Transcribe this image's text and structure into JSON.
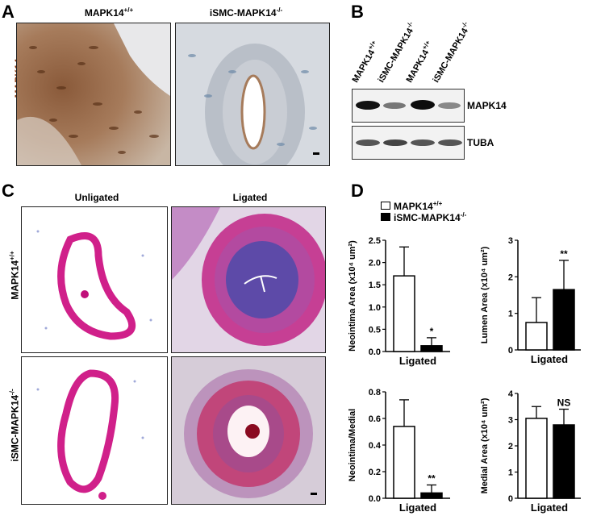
{
  "panels": {
    "A": {
      "letter": "A",
      "col1": "MAPK14+/+",
      "col2": "iSMC-MAPK14-/-",
      "row_label": "MAPK14"
    },
    "B": {
      "letter": "B",
      "lanes": [
        "MAPK14+/+",
        "iSMC-MAPK14-/-",
        "MAPK14+/+",
        "iSMC-MAPK14-/-"
      ],
      "bands": [
        "MAPK14",
        "TUBA"
      ]
    },
    "C": {
      "letter": "C",
      "col1": "Unligated",
      "col2": "Ligated",
      "row1": "MAPK14+/+",
      "row2": "iSMC-MAPK14-/-"
    },
    "D": {
      "letter": "D",
      "legend": [
        "MAPK14+/+",
        "iSMC-MAPK14-/-"
      ]
    }
  },
  "chart_data": [
    {
      "type": "bar",
      "categories": [
        "Ligated"
      ],
      "series": [
        {
          "name": "MAPK14+/+",
          "values": [
            1.7
          ],
          "error": [
            0.65
          ]
        },
        {
          "name": "iSMC-MAPK14-/-",
          "values": [
            0.13
          ],
          "error": [
            0.18
          ]
        }
      ],
      "ylabel": "Neointima Area (x10⁴ um²)",
      "xlabel": "Ligated",
      "ylim": [
        0,
        2.5
      ],
      "yticks": [
        "0.0",
        "0.5",
        "1.0",
        "1.5",
        "2.0",
        "2.5"
      ],
      "annotation": "*"
    },
    {
      "type": "bar",
      "categories": [
        "Ligated"
      ],
      "series": [
        {
          "name": "MAPK14+/+",
          "values": [
            0.75
          ],
          "error": [
            0.68
          ]
        },
        {
          "name": "iSMC-MAPK14-/-",
          "values": [
            1.65
          ],
          "error": [
            0.8
          ]
        }
      ],
      "ylabel": "Lumen Area (x10⁴ um²)",
      "xlabel": "Ligated",
      "ylim": [
        0,
        3
      ],
      "yticks": [
        "0",
        "1",
        "2",
        "3"
      ],
      "annotation": "**"
    },
    {
      "type": "bar",
      "categories": [
        "Ligated"
      ],
      "series": [
        {
          "name": "MAPK14+/+",
          "values": [
            0.54
          ],
          "error": [
            0.2
          ]
        },
        {
          "name": "iSMC-MAPK14-/-",
          "values": [
            0.04
          ],
          "error": [
            0.06
          ]
        }
      ],
      "ylabel": "Neointima/Medial",
      "xlabel": "Ligated",
      "ylim": [
        0,
        0.8
      ],
      "yticks": [
        "0.0",
        "0.2",
        "0.4",
        "0.6",
        "0.8"
      ],
      "annotation": "**"
    },
    {
      "type": "bar",
      "categories": [
        "Ligated"
      ],
      "series": [
        {
          "name": "MAPK14+/+",
          "values": [
            3.05
          ],
          "error": [
            0.45
          ]
        },
        {
          "name": "iSMC-MAPK14-/-",
          "values": [
            2.8
          ],
          "error": [
            0.6
          ]
        }
      ],
      "ylabel": "Medial Area (x10⁴ um²)",
      "xlabel": "Ligated",
      "ylim": [
        0,
        4
      ],
      "yticks": [
        "0",
        "1",
        "2",
        "3",
        "4"
      ],
      "annotation": "NS"
    }
  ]
}
